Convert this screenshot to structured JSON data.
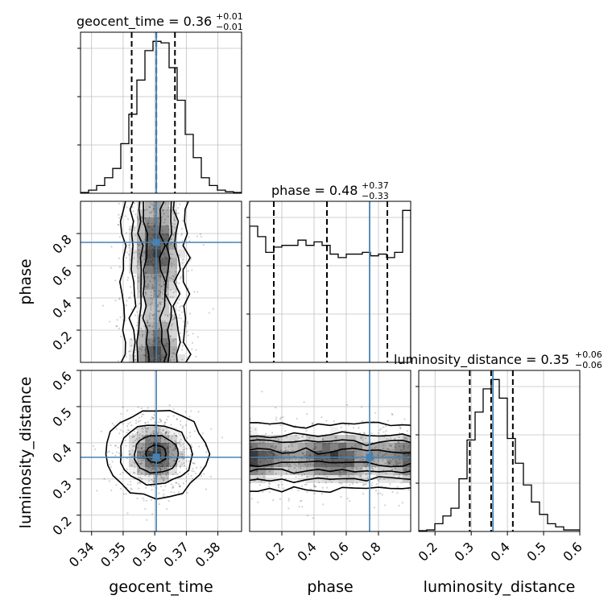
{
  "chart_data": {
    "type": "corner",
    "parameters": [
      "geocent_time",
      "phase",
      "luminosity_distance"
    ],
    "truths": [
      0.3605,
      0.745,
      0.36
    ],
    "titles": [
      {
        "param": "geocent_time",
        "text": "geocent_time = 0.36",
        "plus": "+0.01",
        "minus": "−0.01"
      },
      {
        "param": "phase",
        "text": "phase = 0.48",
        "plus": "+0.37",
        "minus": "−0.33"
      },
      {
        "param": "luminosity_distance",
        "text": "luminosity_distance = 0.35",
        "plus": "+0.06",
        "minus": "−0.06"
      }
    ],
    "ranges": {
      "geocent_time": [
        0.3365,
        0.3875
      ],
      "phase": [
        0.0,
        1.0
      ],
      "luminosity_distance": [
        0.155,
        0.6
      ]
    },
    "ticks": {
      "geocent_time": {
        "values": [
          0.34,
          0.35,
          0.36,
          0.37,
          0.38
        ],
        "labels": [
          "0.34",
          "0.35",
          "0.36",
          "0.37",
          "0.38"
        ]
      },
      "phase": {
        "values": [
          0.2,
          0.4,
          0.6,
          0.8
        ],
        "labels": [
          "0.2",
          "0.4",
          "0.6",
          "0.8"
        ]
      },
      "luminosity_distance": {
        "values": [
          0.2,
          0.3,
          0.4,
          0.5,
          0.6
        ],
        "labels": [
          "0.2",
          "0.3",
          "0.4",
          "0.5",
          "0.6"
        ]
      }
    },
    "quantiles": {
      "geocent_time": [
        0.3527,
        0.3605,
        0.3664
      ],
      "phase": [
        0.15,
        0.48,
        0.855
      ],
      "luminosity_distance": [
        0.296,
        0.355,
        0.415
      ]
    },
    "histograms": {
      "geocent_time": [
        0.5,
        2,
        5,
        10,
        16,
        32,
        51,
        73,
        92,
        98,
        97,
        81,
        60,
        38,
        23,
        10,
        5,
        2,
        1,
        0.5
      ],
      "phase": [
        78,
        72,
        63,
        66,
        67,
        67,
        70,
        67,
        69,
        67,
        62,
        60,
        62,
        62,
        63,
        61,
        62,
        60,
        63,
        87
      ],
      "luminosity_distance": [
        0.5,
        1,
        5,
        10,
        15,
        34,
        59,
        77,
        92,
        98,
        86,
        60,
        44,
        30,
        19,
        11,
        5,
        3,
        1,
        1
      ]
    },
    "grid": true
  },
  "axis_labels": {
    "geocent_time": "geocent_time",
    "phase": "phase",
    "luminosity_distance": "luminosity_distance"
  },
  "colors": {
    "truth": "#4682b4",
    "hist": "#000000",
    "grid": "#c0c0c0",
    "density": "#000000"
  }
}
